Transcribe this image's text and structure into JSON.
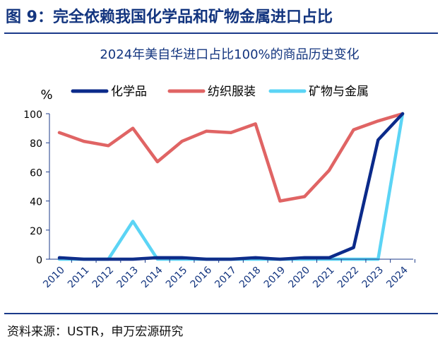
{
  "figure": {
    "title": "图 9：完全依赖我国化学品和矿物金属进口占比",
    "source": "资料来源：USTR，申万宏源研究"
  },
  "chart_data": {
    "type": "line",
    "title": "2024年美自华进口占比100%的商品历史变化",
    "ylabel": "%",
    "xlabel": "",
    "ylim": [
      0,
      100
    ],
    "yticks": [
      0,
      20,
      40,
      60,
      80,
      100
    ],
    "x": [
      "2010",
      "2011",
      "2012",
      "2013",
      "2014",
      "2015",
      "2016",
      "2017",
      "2018",
      "2019",
      "2020",
      "2021",
      "2022",
      "2023",
      "2024"
    ],
    "legend_position": "top",
    "series": [
      {
        "name": "化学品",
        "color": "#0b2a8a",
        "values": [
          1,
          0,
          0,
          0,
          1,
          1,
          0,
          0,
          1,
          0,
          1,
          1,
          8,
          82,
          100
        ]
      },
      {
        "name": "纺织服装",
        "color": "#e06464",
        "values": [
          87,
          81,
          78,
          90,
          67,
          81,
          88,
          87,
          93,
          40,
          43,
          61,
          89,
          95,
          100
        ]
      },
      {
        "name": "矿物与金属",
        "color": "#5bd4f5",
        "values": [
          0,
          0,
          0,
          26,
          0,
          0,
          0,
          0,
          0,
          0,
          0,
          0,
          0,
          0,
          100
        ]
      }
    ]
  }
}
